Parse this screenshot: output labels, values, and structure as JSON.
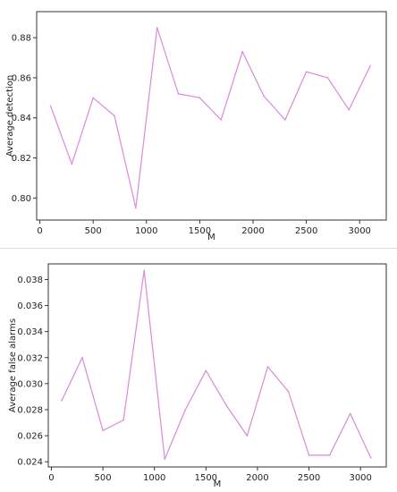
{
  "chart_data": [
    {
      "type": "line",
      "xlabel": "M",
      "ylabel": "Average detection",
      "xlim": [
        -30,
        3250
      ],
      "ylim": [
        0.789,
        0.893
      ],
      "x_ticks": [
        0,
        500,
        1000,
        1500,
        2000,
        2500,
        3000
      ],
      "y_ticks": [
        0.8,
        0.82,
        0.84,
        0.86,
        0.88
      ],
      "y_tick_labels": [
        "0.80",
        "0.82",
        "0.84",
        "0.86",
        "0.88"
      ],
      "grid": false,
      "series": [
        {
          "color": "#d98ad9",
          "x": [
            100,
            300,
            500,
            700,
            900,
            1100,
            1300,
            1500,
            1700,
            1900,
            2100,
            2300,
            2500,
            2700,
            2900,
            3100
          ],
          "y": [
            0.846,
            0.817,
            0.85,
            0.841,
            0.795,
            0.885,
            0.852,
            0.85,
            0.839,
            0.873,
            0.851,
            0.839,
            0.863,
            0.86,
            0.844,
            0.866
          ]
        }
      ]
    },
    {
      "type": "line",
      "xlabel": "M",
      "ylabel": "Average false alarms",
      "xlim": [
        -30,
        3250
      ],
      "ylim": [
        0.0236,
        0.0392
      ],
      "x_ticks": [
        0,
        500,
        1000,
        1500,
        2000,
        2500,
        3000
      ],
      "y_ticks": [
        0.024,
        0.026,
        0.028,
        0.03,
        0.032,
        0.034,
        0.036,
        0.038
      ],
      "y_tick_labels": [
        "0.024",
        "0.026",
        "0.028",
        "0.030",
        "0.032",
        "0.034",
        "0.036",
        "0.038"
      ],
      "grid": false,
      "series": [
        {
          "color": "#d98ad9",
          "x": [
            100,
            300,
            500,
            700,
            900,
            1100,
            1300,
            1500,
            1700,
            1900,
            2100,
            2300,
            2500,
            2700,
            2900,
            3100
          ],
          "y": [
            0.0287,
            0.032,
            0.0264,
            0.0272,
            0.0387,
            0.0242,
            0.028,
            0.031,
            0.0283,
            0.026,
            0.0313,
            0.0294,
            0.0245,
            0.0245,
            0.0277,
            0.0243
          ]
        }
      ]
    }
  ]
}
